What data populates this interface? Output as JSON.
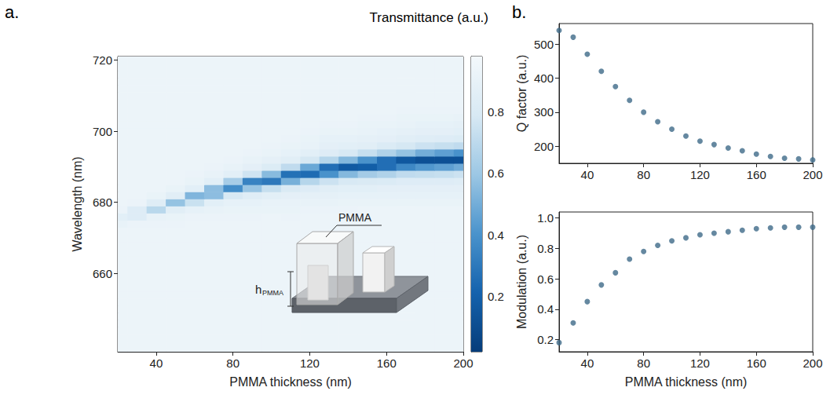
{
  "chart_data": [
    {
      "type": "heatmap",
      "panel": "a.",
      "x_label": "PMMA thickness (nm)",
      "y_label": "Wavelength (nm)",
      "xlim": [
        20,
        200
      ],
      "xticks": [
        40,
        80,
        120,
        160,
        200
      ],
      "ylim": [
        638,
        721
      ],
      "yticks": [
        660,
        680,
        700,
        720
      ],
      "x": [
        20,
        30,
        40,
        50,
        60,
        70,
        80,
        90,
        100,
        110,
        120,
        130,
        140,
        150,
        160,
        170,
        180,
        190,
        200
      ],
      "y": [
        638,
        640,
        642,
        644,
        646,
        648,
        650,
        652,
        654,
        656,
        658,
        660,
        662,
        664,
        666,
        668,
        670,
        672,
        674,
        676,
        678,
        680,
        682,
        684,
        686,
        688,
        690,
        692,
        694,
        696,
        698,
        700,
        702,
        704,
        706,
        708,
        710,
        712,
        714,
        716,
        718,
        720,
        722
      ],
      "z": [
        [
          0.93,
          0.93,
          0.93,
          0.93,
          0.93,
          0.93,
          0.93,
          0.93,
          0.93,
          0.93,
          0.93,
          0.93,
          0.93,
          0.93,
          0.93,
          0.93,
          0.93,
          0.93,
          0.93
        ],
        [
          0.93,
          0.93,
          0.93,
          0.93,
          0.93,
          0.93,
          0.93,
          0.93,
          0.93,
          0.93,
          0.93,
          0.93,
          0.93,
          0.93,
          0.93,
          0.93,
          0.93,
          0.93,
          0.93
        ],
        [
          0.93,
          0.93,
          0.93,
          0.93,
          0.93,
          0.93,
          0.93,
          0.93,
          0.93,
          0.93,
          0.93,
          0.93,
          0.93,
          0.93,
          0.93,
          0.93,
          0.93,
          0.93,
          0.93
        ],
        [
          0.93,
          0.93,
          0.93,
          0.93,
          0.93,
          0.93,
          0.93,
          0.93,
          0.93,
          0.93,
          0.93,
          0.93,
          0.93,
          0.93,
          0.93,
          0.93,
          0.93,
          0.93,
          0.93
        ],
        [
          0.93,
          0.93,
          0.93,
          0.93,
          0.93,
          0.93,
          0.93,
          0.93,
          0.93,
          0.93,
          0.93,
          0.93,
          0.93,
          0.93,
          0.93,
          0.93,
          0.93,
          0.93,
          0.93
        ],
        [
          0.93,
          0.93,
          0.93,
          0.93,
          0.93,
          0.93,
          0.93,
          0.93,
          0.93,
          0.93,
          0.93,
          0.93,
          0.93,
          0.93,
          0.93,
          0.93,
          0.93,
          0.93,
          0.93
        ],
        [
          0.93,
          0.93,
          0.93,
          0.93,
          0.93,
          0.93,
          0.93,
          0.93,
          0.93,
          0.93,
          0.93,
          0.93,
          0.93,
          0.93,
          0.93,
          0.93,
          0.93,
          0.93,
          0.93
        ],
        [
          0.93,
          0.93,
          0.93,
          0.93,
          0.93,
          0.93,
          0.93,
          0.93,
          0.93,
          0.93,
          0.93,
          0.93,
          0.93,
          0.93,
          0.93,
          0.93,
          0.93,
          0.93,
          0.93
        ],
        [
          0.93,
          0.93,
          0.93,
          0.93,
          0.93,
          0.93,
          0.93,
          0.93,
          0.93,
          0.93,
          0.93,
          0.93,
          0.93,
          0.93,
          0.93,
          0.93,
          0.93,
          0.93,
          0.93
        ],
        [
          0.93,
          0.93,
          0.93,
          0.93,
          0.93,
          0.93,
          0.93,
          0.93,
          0.93,
          0.93,
          0.93,
          0.93,
          0.93,
          0.93,
          0.93,
          0.93,
          0.93,
          0.93,
          0.93
        ],
        [
          0.93,
          0.93,
          0.93,
          0.93,
          0.93,
          0.93,
          0.93,
          0.93,
          0.93,
          0.93,
          0.93,
          0.93,
          0.93,
          0.93,
          0.93,
          0.93,
          0.93,
          0.93,
          0.93
        ],
        [
          0.93,
          0.93,
          0.93,
          0.93,
          0.93,
          0.93,
          0.93,
          0.93,
          0.93,
          0.93,
          0.93,
          0.93,
          0.93,
          0.93,
          0.93,
          0.93,
          0.93,
          0.93,
          0.93
        ],
        [
          0.93,
          0.93,
          0.93,
          0.93,
          0.93,
          0.93,
          0.93,
          0.93,
          0.93,
          0.93,
          0.93,
          0.93,
          0.93,
          0.93,
          0.93,
          0.93,
          0.93,
          0.93,
          0.93
        ],
        [
          0.93,
          0.93,
          0.93,
          0.93,
          0.93,
          0.93,
          0.93,
          0.93,
          0.93,
          0.93,
          0.93,
          0.93,
          0.93,
          0.93,
          0.93,
          0.93,
          0.93,
          0.93,
          0.93
        ],
        [
          0.93,
          0.93,
          0.93,
          0.93,
          0.93,
          0.93,
          0.93,
          0.93,
          0.93,
          0.93,
          0.93,
          0.93,
          0.93,
          0.93,
          0.93,
          0.93,
          0.93,
          0.93,
          0.93
        ],
        [
          0.93,
          0.93,
          0.93,
          0.93,
          0.93,
          0.93,
          0.93,
          0.93,
          0.93,
          0.93,
          0.93,
          0.93,
          0.93,
          0.93,
          0.93,
          0.93,
          0.93,
          0.93,
          0.93
        ],
        [
          0.93,
          0.93,
          0.93,
          0.93,
          0.93,
          0.93,
          0.93,
          0.93,
          0.93,
          0.93,
          0.93,
          0.93,
          0.93,
          0.93,
          0.93,
          0.93,
          0.93,
          0.93,
          0.93
        ],
        [
          0.93,
          0.93,
          0.93,
          0.93,
          0.93,
          0.93,
          0.93,
          0.93,
          0.93,
          0.93,
          0.93,
          0.93,
          0.93,
          0.93,
          0.93,
          0.93,
          0.93,
          0.93,
          0.93
        ],
        [
          0.9,
          0.92,
          0.92,
          0.92,
          0.93,
          0.93,
          0.93,
          0.93,
          0.93,
          0.93,
          0.93,
          0.93,
          0.93,
          0.93,
          0.93,
          0.93,
          0.93,
          0.93,
          0.93
        ],
        [
          0.86,
          0.83,
          0.9,
          0.91,
          0.92,
          0.92,
          0.92,
          0.92,
          0.93,
          0.92,
          0.93,
          0.93,
          0.93,
          0.93,
          0.93,
          0.93,
          0.93,
          0.93,
          0.93
        ],
        [
          0.92,
          0.83,
          0.69,
          0.85,
          0.89,
          0.9,
          0.91,
          0.91,
          0.91,
          0.91,
          0.92,
          0.92,
          0.92,
          0.93,
          0.93,
          0.93,
          0.93,
          0.93,
          0.93
        ],
        [
          0.93,
          0.92,
          0.84,
          0.58,
          0.74,
          0.86,
          0.89,
          0.89,
          0.9,
          0.9,
          0.9,
          0.9,
          0.91,
          0.91,
          0.91,
          0.91,
          0.91,
          0.91,
          0.91
        ],
        [
          0.93,
          0.93,
          0.91,
          0.85,
          0.53,
          0.56,
          0.79,
          0.84,
          0.86,
          0.87,
          0.88,
          0.88,
          0.89,
          0.89,
          0.89,
          0.89,
          0.89,
          0.89,
          0.89
        ],
        [
          0.93,
          0.93,
          0.93,
          0.91,
          0.86,
          0.56,
          0.38,
          0.59,
          0.73,
          0.8,
          0.83,
          0.85,
          0.86,
          0.86,
          0.87,
          0.87,
          0.87,
          0.87,
          0.87
        ],
        [
          0.93,
          0.93,
          0.93,
          0.93,
          0.91,
          0.86,
          0.63,
          0.34,
          0.3,
          0.51,
          0.68,
          0.75,
          0.79,
          0.8,
          0.81,
          0.83,
          0.83,
          0.83,
          0.84
        ],
        [
          0.93,
          0.93,
          0.93,
          0.93,
          0.92,
          0.9,
          0.86,
          0.76,
          0.55,
          0.27,
          0.25,
          0.4,
          0.54,
          0.62,
          0.66,
          0.71,
          0.72,
          0.73,
          0.75
        ],
        [
          0.93,
          0.93,
          0.93,
          0.93,
          0.93,
          0.92,
          0.9,
          0.87,
          0.82,
          0.71,
          0.48,
          0.26,
          0.17,
          0.19,
          0.26,
          0.36,
          0.42,
          0.45,
          0.49
        ],
        [
          0.93,
          0.93,
          0.93,
          0.93,
          0.93,
          0.93,
          0.92,
          0.9,
          0.88,
          0.85,
          0.78,
          0.68,
          0.54,
          0.4,
          0.26,
          0.16,
          0.12,
          0.12,
          0.12
        ],
        [
          0.93,
          0.93,
          0.93,
          0.93,
          0.93,
          0.93,
          0.93,
          0.92,
          0.91,
          0.89,
          0.86,
          0.83,
          0.79,
          0.73,
          0.66,
          0.58,
          0.5,
          0.45,
          0.4
        ],
        [
          0.93,
          0.93,
          0.93,
          0.93,
          0.93,
          0.93,
          0.93,
          0.93,
          0.92,
          0.91,
          0.9,
          0.87,
          0.86,
          0.85,
          0.81,
          0.78,
          0.75,
          0.73,
          0.71
        ],
        [
          0.93,
          0.93,
          0.93,
          0.93,
          0.93,
          0.93,
          0.93,
          0.93,
          0.93,
          0.92,
          0.91,
          0.89,
          0.89,
          0.88,
          0.87,
          0.85,
          0.84,
          0.83,
          0.82
        ],
        [
          0.93,
          0.93,
          0.93,
          0.93,
          0.93,
          0.93,
          0.93,
          0.93,
          0.93,
          0.93,
          0.92,
          0.91,
          0.91,
          0.9,
          0.89,
          0.88,
          0.87,
          0.87,
          0.86
        ],
        [
          0.93,
          0.93,
          0.93,
          0.93,
          0.93,
          0.93,
          0.93,
          0.93,
          0.93,
          0.93,
          0.93,
          0.92,
          0.92,
          0.91,
          0.91,
          0.9,
          0.89,
          0.89,
          0.88
        ],
        [
          0.93,
          0.93,
          0.93,
          0.93,
          0.93,
          0.93,
          0.93,
          0.93,
          0.93,
          0.93,
          0.93,
          0.93,
          0.93,
          0.92,
          0.92,
          0.91,
          0.91,
          0.91,
          0.9
        ],
        [
          0.93,
          0.93,
          0.93,
          0.93,
          0.93,
          0.93,
          0.93,
          0.93,
          0.93,
          0.93,
          0.93,
          0.93,
          0.93,
          0.93,
          0.93,
          0.92,
          0.92,
          0.92,
          0.92
        ],
        [
          0.93,
          0.93,
          0.93,
          0.93,
          0.93,
          0.93,
          0.93,
          0.93,
          0.93,
          0.93,
          0.93,
          0.93,
          0.93,
          0.93,
          0.93,
          0.93,
          0.93,
          0.93,
          0.93
        ],
        [
          0.93,
          0.93,
          0.93,
          0.93,
          0.93,
          0.93,
          0.93,
          0.93,
          0.93,
          0.93,
          0.93,
          0.93,
          0.93,
          0.93,
          0.93,
          0.93,
          0.93,
          0.93,
          0.93
        ],
        [
          0.93,
          0.93,
          0.93,
          0.93,
          0.93,
          0.93,
          0.93,
          0.93,
          0.93,
          0.93,
          0.93,
          0.93,
          0.93,
          0.93,
          0.93,
          0.93,
          0.93,
          0.93,
          0.93
        ],
        [
          0.93,
          0.93,
          0.93,
          0.93,
          0.93,
          0.93,
          0.93,
          0.93,
          0.93,
          0.93,
          0.93,
          0.93,
          0.93,
          0.93,
          0.93,
          0.93,
          0.93,
          0.93,
          0.93
        ],
        [
          0.93,
          0.93,
          0.93,
          0.93,
          0.93,
          0.93,
          0.93,
          0.93,
          0.93,
          0.93,
          0.93,
          0.93,
          0.93,
          0.93,
          0.93,
          0.93,
          0.93,
          0.93,
          0.93
        ],
        [
          0.93,
          0.93,
          0.93,
          0.93,
          0.93,
          0.93,
          0.93,
          0.93,
          0.93,
          0.93,
          0.93,
          0.93,
          0.93,
          0.93,
          0.93,
          0.93,
          0.93,
          0.93,
          0.93
        ],
        [
          0.93,
          0.93,
          0.93,
          0.93,
          0.93,
          0.93,
          0.93,
          0.93,
          0.93,
          0.93,
          0.93,
          0.93,
          0.93,
          0.93,
          0.93,
          0.93,
          0.93,
          0.93,
          0.93
        ],
        [
          0.93,
          0.93,
          0.93,
          0.93,
          0.93,
          0.93,
          0.93,
          0.93,
          0.93,
          0.93,
          0.93,
          0.93,
          0.93,
          0.93,
          0.93,
          0.93,
          0.93,
          0.93,
          0.93
        ]
      ],
      "colorbar": {
        "label": "Transmittance (a.u.)",
        "lim": [
          0.02,
          0.98
        ],
        "ticks": [
          0.2,
          0.4,
          0.6,
          0.8
        ]
      },
      "inset": {
        "label": "PMMA",
        "height_label": {
          "text": "h",
          "subscript": "PMMA"
        }
      }
    },
    {
      "type": "scatter",
      "panel": "b.",
      "y_label": "Q factor (a.u.)",
      "xlim": [
        20,
        200
      ],
      "xticks": [
        40,
        80,
        120,
        160,
        200
      ],
      "ylim": [
        150,
        560
      ],
      "yticks": [
        200,
        300,
        400,
        500
      ],
      "x": [
        20,
        30,
        40,
        50,
        60,
        70,
        80,
        90,
        100,
        110,
        120,
        130,
        140,
        150,
        160,
        170,
        180,
        190,
        200
      ],
      "values": [
        540,
        520,
        470,
        420,
        375,
        335,
        300,
        272,
        250,
        230,
        215,
        205,
        195,
        187,
        177,
        170,
        165,
        163,
        160
      ],
      "color": "#3f6a88",
      "marker": "circle"
    },
    {
      "type": "scatter",
      "x_label": "PMMA thickness (nm)",
      "y_label": "Modulation (a.u.)",
      "xlim": [
        20,
        200
      ],
      "xticks": [
        40,
        80,
        120,
        160,
        200
      ],
      "ylim": [
        0.12,
        1.04
      ],
      "yticks": [
        0.2,
        0.4,
        0.6,
        0.8,
        {
          "value": 1,
          "label": "1.0"
        }
      ],
      "x": [
        20,
        30,
        40,
        50,
        60,
        70,
        80,
        90,
        100,
        110,
        120,
        130,
        140,
        150,
        160,
        170,
        180,
        190,
        200
      ],
      "values": [
        0.18,
        0.31,
        0.45,
        0.56,
        0.64,
        0.73,
        0.78,
        0.82,
        0.85,
        0.87,
        0.89,
        0.9,
        0.91,
        0.92,
        0.93,
        0.935,
        0.94,
        0.94,
        0.94
      ],
      "color": "#3f6a88",
      "marker": "circle"
    }
  ]
}
